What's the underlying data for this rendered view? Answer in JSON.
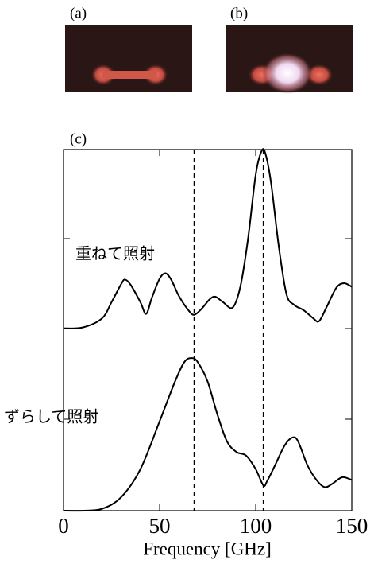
{
  "panels": [
    "(a)",
    "(b)"
  ],
  "chart_data": {
    "type": "line",
    "panel_label": "(c)",
    "xlabel": "Frequency [GHz]",
    "xlim": [
      0,
      150
    ],
    "xticks": [
      0,
      50,
      100,
      150
    ],
    "ylim": [
      0,
      4
    ],
    "vlines": [
      68,
      104
    ],
    "series": [
      {
        "name": "重ねて照射",
        "color": "#000000",
        "x": [
          0,
          10,
          20,
          25,
          30,
          32,
          35,
          40,
          43,
          46,
          50,
          53,
          56,
          60,
          65,
          68,
          72,
          76,
          79,
          83,
          88,
          92,
          96,
          100,
          103,
          105,
          108,
          112,
          116,
          120,
          125,
          130,
          133,
          137,
          142,
          146,
          150
        ],
        "values": [
          2.02,
          2.03,
          2.13,
          2.31,
          2.51,
          2.56,
          2.5,
          2.31,
          2.18,
          2.36,
          2.57,
          2.63,
          2.56,
          2.38,
          2.22,
          2.17,
          2.24,
          2.34,
          2.37,
          2.31,
          2.25,
          2.48,
          3.01,
          3.72,
          3.98,
          3.96,
          3.63,
          2.93,
          2.4,
          2.28,
          2.22,
          2.13,
          2.1,
          2.26,
          2.47,
          2.52,
          2.48
        ]
      },
      {
        "name": "ずらして照射",
        "color": "#000000",
        "x": [
          0,
          10,
          20,
          30,
          40,
          50,
          58,
          63,
          67,
          70,
          75,
          80,
          85,
          90,
          95,
          100,
          104,
          106,
          110,
          115,
          119,
          122,
          127,
          132,
          136,
          140,
          145,
          150
        ],
        "values": [
          0,
          0,
          0.02,
          0.15,
          0.46,
          0.99,
          1.43,
          1.65,
          1.69,
          1.64,
          1.43,
          1.07,
          0.77,
          0.65,
          0.61,
          0.46,
          0.28,
          0.33,
          0.5,
          0.72,
          0.81,
          0.77,
          0.5,
          0.33,
          0.26,
          0.3,
          0.37,
          0.34
        ]
      }
    ]
  }
}
